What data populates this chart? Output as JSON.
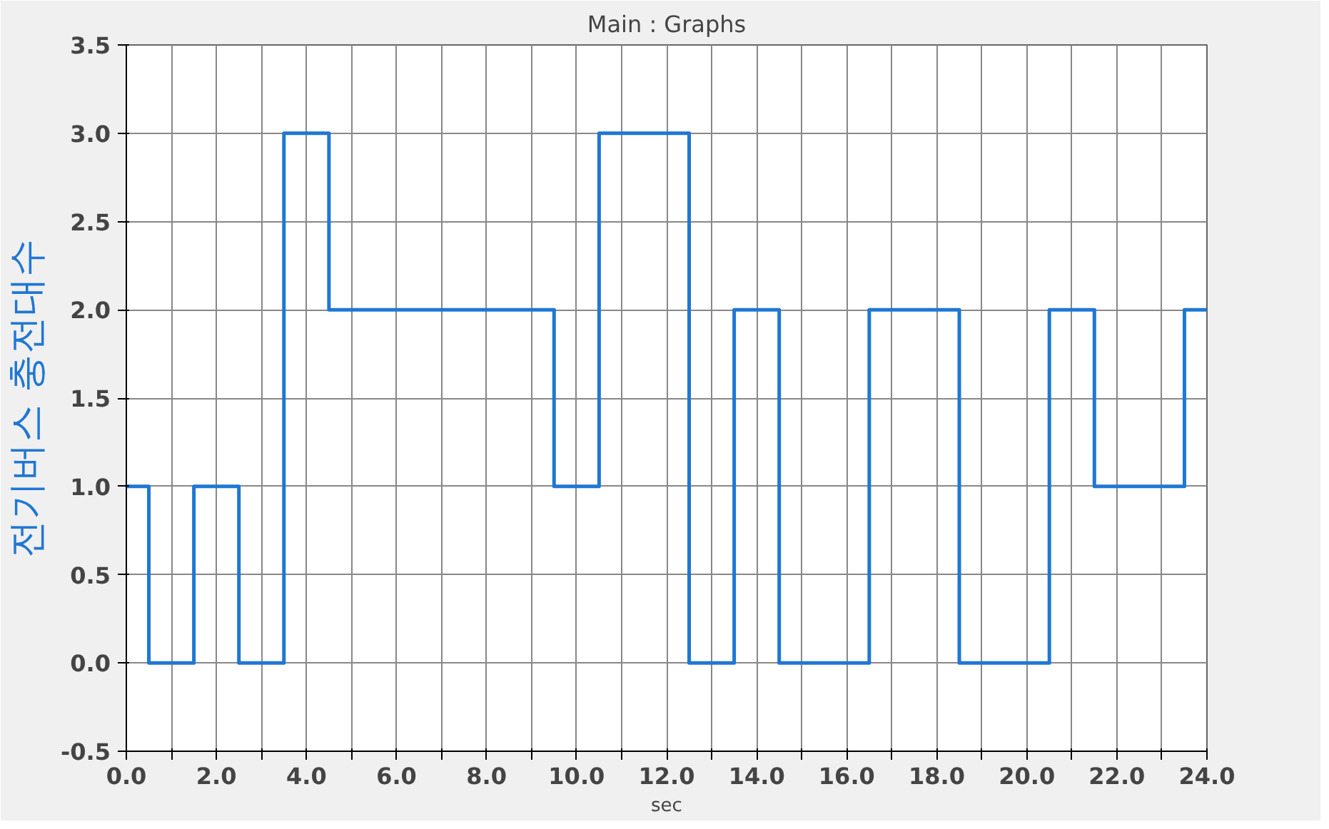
{
  "chart_data": {
    "type": "step",
    "title": "Main : Graphs",
    "xlabel": "sec",
    "ylabel": "전기버스 충전대수",
    "x": [
      0,
      0.5,
      1.5,
      2.5,
      3.5,
      4.5,
      9.5,
      10.5,
      12.5,
      13.5,
      14.5,
      16.5,
      18.5,
      20.5,
      21.5,
      23.5,
      24
    ],
    "series": [
      {
        "color": "#1f77d4",
        "values": [
          1,
          0,
          1,
          0,
          3,
          2,
          1,
          3,
          0,
          2,
          0,
          2,
          0,
          2,
          1,
          2,
          2
        ]
      }
    ],
    "xlim": [
      0,
      24
    ],
    "ylim": [
      -0.5,
      3.5
    ],
    "xticks": [
      {
        "value": 0,
        "label": "0.0"
      },
      {
        "value": 1,
        "label": null
      },
      {
        "value": 2,
        "label": "2.0"
      },
      {
        "value": 3,
        "label": null
      },
      {
        "value": 4,
        "label": "4.0"
      },
      {
        "value": 5,
        "label": null
      },
      {
        "value": 6,
        "label": "6.0"
      },
      {
        "value": 7,
        "label": null
      },
      {
        "value": 8,
        "label": "8.0"
      },
      {
        "value": 9,
        "label": null
      },
      {
        "value": 10,
        "label": "10.0"
      },
      {
        "value": 11,
        "label": null
      },
      {
        "value": 12,
        "label": "12.0"
      },
      {
        "value": 13,
        "label": null
      },
      {
        "value": 14,
        "label": "14.0"
      },
      {
        "value": 15,
        "label": null
      },
      {
        "value": 16,
        "label": "16.0"
      },
      {
        "value": 17,
        "label": null
      },
      {
        "value": 18,
        "label": "18.0"
      },
      {
        "value": 19,
        "label": null
      },
      {
        "value": 20,
        "label": "20.0"
      },
      {
        "value": 21,
        "label": null
      },
      {
        "value": 22,
        "label": "22.0"
      },
      {
        "value": 23,
        "label": null
      },
      {
        "value": 24,
        "label": "24.0"
      }
    ],
    "yticks": [
      {
        "value": -0.5,
        "label": "-0.5"
      },
      {
        "value": 0,
        "label": "0.0"
      },
      {
        "value": 0.5,
        "label": "0.5"
      },
      {
        "value": 1,
        "label": "1.0"
      },
      {
        "value": 1.5,
        "label": "1.5"
      },
      {
        "value": 2,
        "label": "2.0"
      },
      {
        "value": 2.5,
        "label": "2.5"
      },
      {
        "value": 3,
        "label": "3.0"
      },
      {
        "value": 3.5,
        "label": "3.5"
      }
    ],
    "grid": true,
    "line_style": "solid"
  }
}
